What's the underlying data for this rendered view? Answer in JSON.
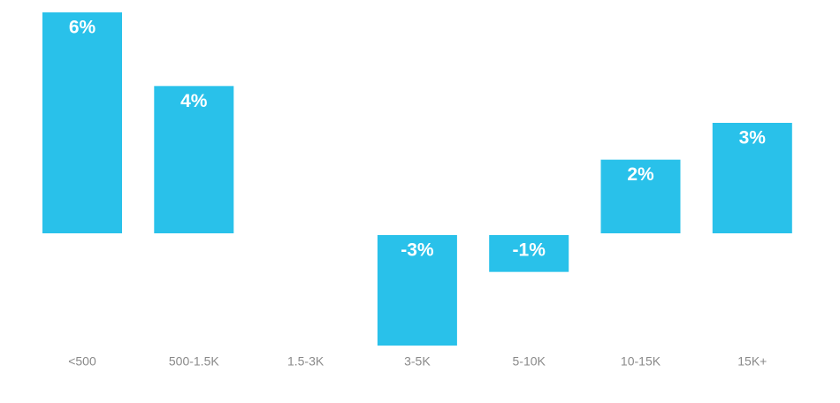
{
  "chart_data": {
    "type": "bar",
    "categories": [
      "<500",
      "500-1.5K",
      "1.5-3K",
      "3-5K",
      "5-10K",
      "10-15K",
      "15K+"
    ],
    "values": [
      6,
      4,
      null,
      -3,
      -1,
      2,
      3
    ],
    "value_labels": [
      "6%",
      "4%",
      null,
      "-3%",
      "-1%",
      "2%",
      "3%"
    ],
    "color": "#29c1ea"
  }
}
